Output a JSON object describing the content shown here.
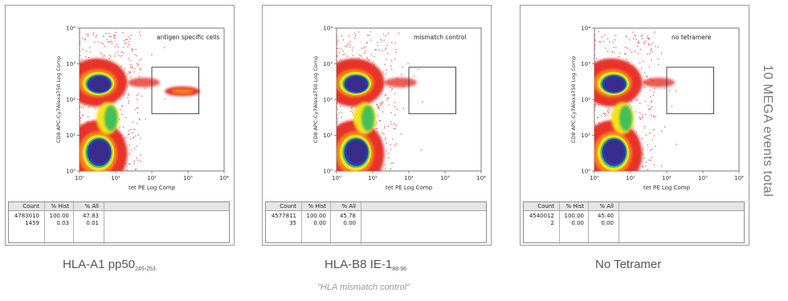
{
  "side_label": "10 MEGA events total",
  "panels": [
    {
      "gate_label": "antigen specific cells",
      "ylabel": "CD8 APC-Cy7Alexa750 Log Comp",
      "xlabel": "tet PE Log Comp",
      "caption_main": "HLA-A1 pp50",
      "caption_sub": "245-253",
      "subcaption": "",
      "stats": {
        "headers": [
          "Count",
          "% Hist",
          "% All"
        ],
        "rows": [
          [
            "4783010",
            "100.00",
            "47.83"
          ],
          [
            "1459",
            "0.03",
            "0.01"
          ]
        ]
      }
    },
    {
      "gate_label": "mismatch control",
      "ylabel": "CD8 APC-Cy7Alexa750 Log Comp",
      "xlabel": "tet PE Log Comp",
      "caption_main": "HLA-B8 IE-1",
      "caption_sub": "88-96",
      "subcaption": "\"HLA mismatch control\"",
      "stats": {
        "headers": [
          "Count",
          "% Hist",
          "% All"
        ],
        "rows": [
          [
            "4577811",
            "100.00",
            "45.78"
          ],
          [
            "35",
            "0.00",
            "0.00"
          ]
        ]
      }
    },
    {
      "gate_label": "no tetramere",
      "ylabel": "CD8 APC-Cy7Alexa750 Log Comp",
      "xlabel": "tet PE Log Comp",
      "caption_main": "No Tetramer",
      "caption_sub": "",
      "subcaption": "",
      "stats": {
        "headers": [
          "Count",
          "% Hist",
          "% All"
        ],
        "rows": [
          [
            "4540012",
            "100.00",
            "45.40"
          ],
          [
            "2",
            "0.00",
            "0.00"
          ]
        ]
      }
    }
  ],
  "chart_data": [
    {
      "type": "scatter",
      "title": "",
      "xlabel": "tet PE Log Comp",
      "ylabel": "CD8 APC-Cy7Alexa750 Log Comp",
      "xscale": "log",
      "yscale": "log",
      "xlim": [
        1,
        10000
      ],
      "ylim": [
        1,
        10000
      ],
      "x_tick_labels": [
        "10⁰",
        "10¹",
        "10²",
        "10³",
        "10⁴"
      ],
      "y_tick_labels": [
        "10⁰",
        "10¹",
        "10²",
        "10³",
        "10⁴"
      ],
      "gate": {
        "label": "antigen specific cells",
        "x": [
          100,
          2000
        ],
        "y": [
          40,
          800
        ]
      },
      "populations": [
        {
          "name": "",
          "cx": 3,
          "cy": 300,
          "density": "high"
        },
        {
          "name": "",
          "cx": 3,
          "cy": 3,
          "density": "high"
        },
        {
          "name": "",
          "cx": 700,
          "cy": 170,
          "density": "low"
        }
      ]
    },
    {
      "type": "scatter",
      "title": "",
      "xlabel": "tet PE Log Comp",
      "ylabel": "CD8 APC-Cy7Alexa750 Log Comp",
      "xscale": "log",
      "yscale": "log",
      "xlim": [
        1,
        10000
      ],
      "ylim": [
        1,
        10000
      ],
      "x_tick_labels": [
        "10⁰",
        "10¹",
        "10²",
        "10³",
        "10⁴"
      ],
      "y_tick_labels": [
        "10⁰",
        "10¹",
        "10²",
        "10³",
        "10⁴"
      ],
      "gate": {
        "label": "mismatch control",
        "x": [
          100,
          2000
        ],
        "y": [
          40,
          800
        ]
      },
      "populations": [
        {
          "name": "",
          "cx": 3,
          "cy": 300,
          "density": "high"
        },
        {
          "name": "",
          "cx": 3,
          "cy": 3,
          "density": "high"
        }
      ]
    },
    {
      "type": "scatter",
      "title": "",
      "xlabel": "tet PE Log Comp",
      "ylabel": "CD8 APC-Cy7Alexa750 Log Comp",
      "xscale": "log",
      "yscale": "log",
      "xlim": [
        1,
        10000
      ],
      "ylim": [
        1,
        10000
      ],
      "x_tick_labels": [
        "10⁰",
        "10¹",
        "10²",
        "10³",
        "10⁴"
      ],
      "y_tick_labels": [
        "10⁰",
        "10¹",
        "10²",
        "10³",
        "10⁴"
      ],
      "gate": {
        "label": "no tetramere",
        "x": [
          100,
          2000
        ],
        "y": [
          40,
          800
        ]
      },
      "populations": [
        {
          "name": "",
          "cx": 3,
          "cy": 300,
          "density": "high"
        },
        {
          "name": "",
          "cx": 3,
          "cy": 3,
          "density": "high"
        }
      ]
    }
  ]
}
